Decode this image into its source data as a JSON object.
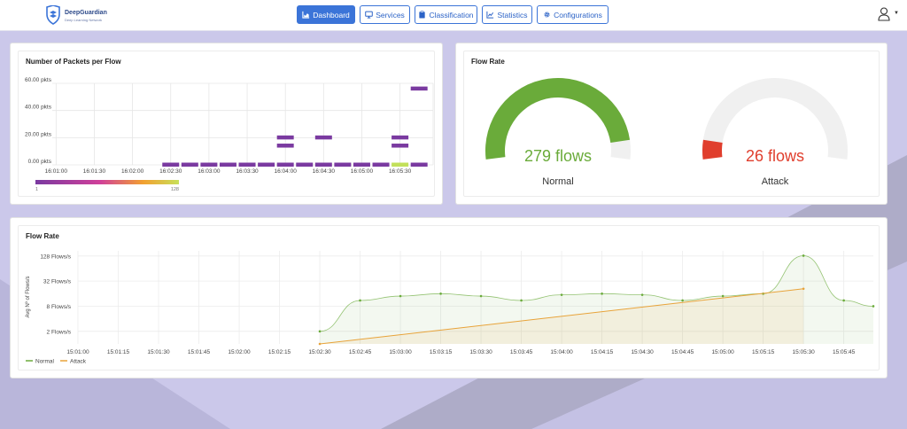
{
  "brand": {
    "name": "DeepGuardian",
    "tagline": "Deep Learning Network"
  },
  "nav": {
    "items": [
      {
        "label": "Dashboard",
        "icon": "chart-area-icon",
        "active": true
      },
      {
        "label": "Services",
        "icon": "monitor-icon",
        "active": false
      },
      {
        "label": "Classification",
        "icon": "clipboard-icon",
        "active": false
      },
      {
        "label": "Statistics",
        "icon": "line-chart-icon",
        "active": false
      },
      {
        "label": "Configurations",
        "icon": "gear-icon",
        "active": false
      }
    ],
    "user_icon": "user-icon"
  },
  "colors": {
    "accent": "#3b74d8",
    "normal": "#6aab3a",
    "attack": "#e03e2d",
    "heat_purple": "#7a3aa0"
  },
  "packets_card": {
    "title": "Number of Packets per Flow",
    "chart_data": {
      "type": "heatmap",
      "y_ticks": [
        "60.00 pkts",
        "40.00 pkts",
        "20.00 pkts",
        "0.00 pkts"
      ],
      "y_tick_values": [
        60,
        40,
        20,
        0
      ],
      "x_ticks": [
        "16:01:00",
        "16:01:30",
        "16:02:00",
        "16:02:30",
        "16:03:00",
        "16:03:30",
        "16:04:00",
        "16:04:30",
        "16:05:00",
        "16:05:30"
      ],
      "x_tick_values": [
        60,
        90,
        120,
        150,
        180,
        210,
        240,
        270,
        300,
        330
      ],
      "cells": [
        {
          "t": 150,
          "y": 0,
          "count": 5
        },
        {
          "t": 165,
          "y": 0,
          "count": 5
        },
        {
          "t": 180,
          "y": 0,
          "count": 5
        },
        {
          "t": 195,
          "y": 0,
          "count": 5
        },
        {
          "t": 210,
          "y": 0,
          "count": 5
        },
        {
          "t": 225,
          "y": 0,
          "count": 5
        },
        {
          "t": 240,
          "y": 0,
          "count": 5
        },
        {
          "t": 240,
          "y": 14,
          "count": 2
        },
        {
          "t": 240,
          "y": 20,
          "count": 2
        },
        {
          "t": 255,
          "y": 0,
          "count": 5
        },
        {
          "t": 270,
          "y": 0,
          "count": 5
        },
        {
          "t": 270,
          "y": 20,
          "count": 2
        },
        {
          "t": 285,
          "y": 0,
          "count": 5
        },
        {
          "t": 300,
          "y": 0,
          "count": 5
        },
        {
          "t": 315,
          "y": 0,
          "count": 5
        },
        {
          "t": 330,
          "y": 0,
          "count": 110
        },
        {
          "t": 330,
          "y": 14,
          "count": 2
        },
        {
          "t": 330,
          "y": 20,
          "count": 2
        },
        {
          "t": 345,
          "y": 0,
          "count": 5
        },
        {
          "t": 345,
          "y": 56,
          "count": 3
        }
      ],
      "color_scale": {
        "min_label": "1",
        "max_label": "128",
        "min": 1,
        "max": 128
      },
      "ylim": [
        0,
        60
      ]
    }
  },
  "flowrate_gauges": {
    "title": "Flow Rate",
    "gauges": [
      {
        "value_text": "279 flows",
        "label": "Normal",
        "fraction": 0.92,
        "color": "#6aab3a"
      },
      {
        "value_text": "26 flows",
        "label": "Attack",
        "fraction": 0.08,
        "color": "#e03e2d"
      }
    ]
  },
  "flowrate_line": {
    "title": "Flow Rate",
    "chart_data": {
      "type": "line",
      "ylabel": "Avg Nº of Flows/s",
      "y_scale": "log2",
      "y_ticks": [
        "128 Flows/s",
        "32 Flows/s",
        "8 Flows/s",
        "2 Flows/s"
      ],
      "y_tick_values": [
        128,
        32,
        8,
        2
      ],
      "x_ticks": [
        "15:01:00",
        "15:01:15",
        "15:01:30",
        "15:01:45",
        "15:02:00",
        "15:02:15",
        "15:02:30",
        "15:02:45",
        "15:03:00",
        "15:03:15",
        "15:03:30",
        "15:03:45",
        "15:04:00",
        "15:04:15",
        "15:04:30",
        "15:04:45",
        "15:05:00",
        "15:05:15",
        "15:05:30",
        "15:05:45"
      ],
      "x_tick_values": [
        60,
        75,
        90,
        105,
        120,
        135,
        150,
        165,
        180,
        195,
        210,
        225,
        240,
        255,
        270,
        285,
        300,
        315,
        330,
        345
      ],
      "xlim": [
        60,
        356
      ],
      "ylim": [
        1,
        170
      ],
      "series": [
        {
          "name": "Normal",
          "color": "#6aab3a",
          "x": [
            150,
            165,
            180,
            195,
            210,
            225,
            240,
            255,
            270,
            285,
            300,
            315,
            330,
            345,
            356
          ],
          "y": [
            2,
            11,
            14,
            16,
            14,
            11,
            15,
            16,
            15,
            11,
            14,
            16,
            130,
            11,
            8
          ]
        },
        {
          "name": "Attack",
          "color": "#e8a33a",
          "x": [
            150,
            330
          ],
          "y": [
            1,
            21
          ]
        }
      ]
    }
  }
}
